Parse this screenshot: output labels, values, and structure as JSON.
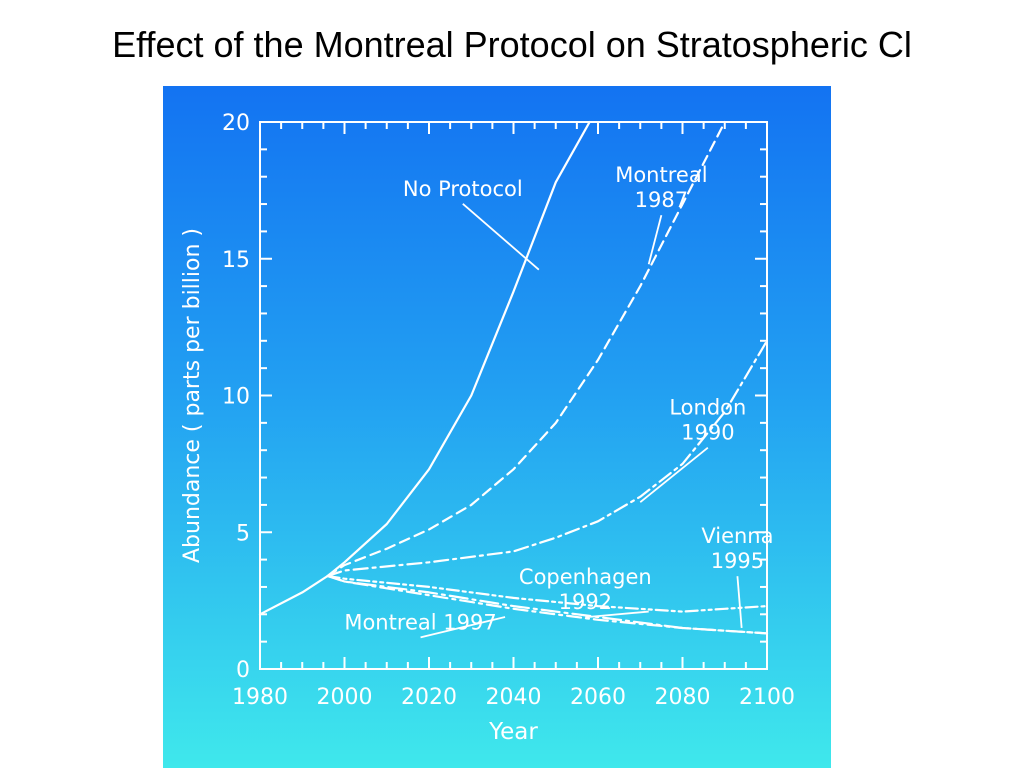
{
  "slide": {
    "title": "Effect of the Montreal Protocol on Stratospheric Cl"
  },
  "colors": {
    "panel_top": "#1373f2",
    "panel_bottom": "#3fe8ec",
    "ink": "#ffffff"
  },
  "chart_data": {
    "type": "line",
    "title": "",
    "xlabel": "Year",
    "ylabel": "Abundance ( parts per billion )",
    "xlim": [
      1980,
      2100
    ],
    "ylim": [
      0,
      20
    ],
    "xticks": [
      1980,
      2000,
      2020,
      2040,
      2060,
      2080,
      2100
    ],
    "yticks": [
      0,
      5,
      10,
      15,
      20
    ],
    "grid": false,
    "legend": "none (series labeled directly on the chart)",
    "series": [
      {
        "name": "No Protocol",
        "style": "solid",
        "x": [
          1980,
          1990,
          1996,
          2000,
          2010,
          2020,
          2030,
          2040,
          2050,
          2058
        ],
        "y": [
          2.0,
          2.8,
          3.4,
          3.9,
          5.3,
          7.3,
          10.0,
          13.8,
          17.8,
          20.0
        ]
      },
      {
        "name": "Montreal 1987",
        "style": "dashed",
        "x": [
          1996,
          2000,
          2010,
          2020,
          2030,
          2040,
          2050,
          2060,
          2070,
          2080,
          2090
        ],
        "y": [
          3.4,
          3.8,
          4.4,
          5.1,
          6.0,
          7.3,
          9.0,
          11.3,
          14.0,
          17.0,
          20.0
        ]
      },
      {
        "name": "London 1990",
        "style": "dash-dot",
        "x": [
          1996,
          2000,
          2020,
          2040,
          2050,
          2060,
          2070,
          2080,
          2090,
          2100
        ],
        "y": [
          3.4,
          3.6,
          3.9,
          4.3,
          4.8,
          5.4,
          6.3,
          7.5,
          9.4,
          12.0
        ]
      },
      {
        "name": "Copenhagen 1992",
        "style": "dash-dot-dot",
        "x": [
          1996,
          2000,
          2020,
          2040,
          2060,
          2080,
          2090,
          2100
        ],
        "y": [
          3.4,
          3.3,
          3.0,
          2.6,
          2.3,
          2.1,
          2.2,
          2.3
        ]
      },
      {
        "name": "Vienna 1995",
        "style": "long-dash-dot",
        "x": [
          1996,
          2000,
          2020,
          2040,
          2060,
          2080,
          2100
        ],
        "y": [
          3.4,
          3.2,
          2.8,
          2.3,
          1.9,
          1.5,
          1.3
        ]
      },
      {
        "name": "Montreal 1997",
        "style": "dash-dot",
        "x": [
          1996,
          2000,
          2020,
          2040,
          2060,
          2080,
          2100
        ],
        "y": [
          3.4,
          3.2,
          2.7,
          2.2,
          1.8,
          1.5,
          1.3
        ]
      }
    ],
    "annotations": [
      {
        "lines": [
          "No Protocol"
        ],
        "series": "No Protocol",
        "text_anchor": [
          2028,
          17.3
        ],
        "arrow_to": [
          2046,
          14.6
        ]
      },
      {
        "lines": [
          "Montreal",
          "1987"
        ],
        "series": "Montreal 1987",
        "text_anchor": [
          2075,
          17.8
        ],
        "arrow_to": [
          2072,
          14.8
        ]
      },
      {
        "lines": [
          "London",
          "1990"
        ],
        "series": "London 1990",
        "text_anchor": [
          2086,
          9.3
        ],
        "arrow_to": [
          2070,
          6.1
        ]
      },
      {
        "lines": [
          "Vienna",
          "1995"
        ],
        "series": "Vienna 1995",
        "text_anchor": [
          2093,
          4.6
        ],
        "arrow_to": [
          2094,
          1.5
        ]
      },
      {
        "lines": [
          "Copenhagen",
          "1992"
        ],
        "series": "Copenhagen 1992",
        "text_anchor": [
          2057,
          3.1
        ],
        "arrow_to": [
          2072,
          2.1
        ]
      },
      {
        "lines": [
          "Montreal 1997"
        ],
        "series": "Montreal 1997",
        "text_anchor": [
          2018,
          1.45
        ],
        "arrow_to": [
          2038,
          1.9
        ]
      }
    ]
  }
}
